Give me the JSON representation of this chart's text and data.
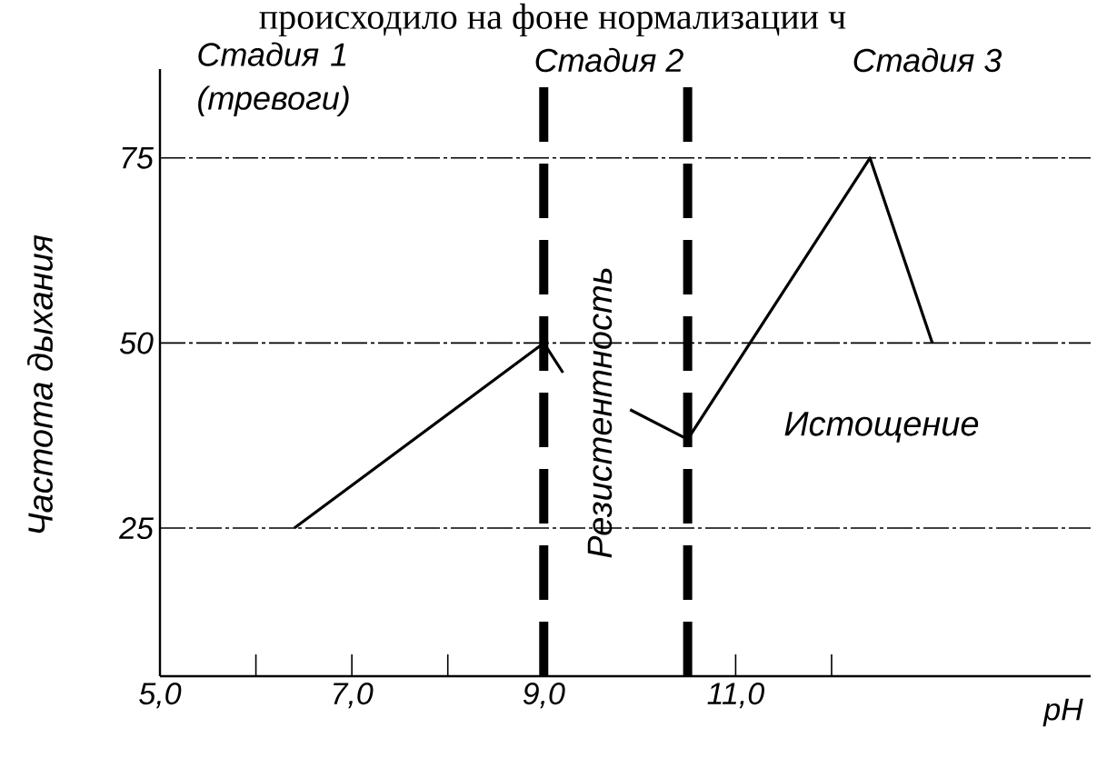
{
  "chart_data": {
    "type": "line",
    "ylabel": "Частота дыхания",
    "xlabel": "pH",
    "annotations": [
      "происходило на фоне нормализации ч",
      "Стадия 1 (тревоги)",
      "Стадия 2",
      "Стадия 3",
      "Резистентность",
      "Истощение"
    ],
    "series": [
      {
        "color": "#000000",
        "x": [
          6.4,
          9.0,
          9.2,
          9.55,
          9.9,
          10.5,
          12.4,
          13.05
        ],
        "values": [
          25,
          50,
          46,
          null,
          41,
          37,
          75,
          50
        ]
      }
    ],
    "xlim": [
      5,
      14.7
    ],
    "ylim": [
      5,
      87
    ],
    "xticks": [
      {
        "value": 5,
        "label": "5,0"
      },
      {
        "value": 6,
        "label": null
      },
      {
        "value": 7,
        "label": "7,0"
      },
      {
        "value": 8,
        "label": null
      },
      {
        "value": 9,
        "label": "9,0"
      },
      {
        "value": 11,
        "label": "11,0"
      },
      {
        "value": 12,
        "label": null
      }
    ],
    "yticks": [
      25,
      50,
      75
    ],
    "grid": "y",
    "marker": "none",
    "line_style": "solid",
    "ref_lines": [
      {
        "axis": "x",
        "value": 9.0,
        "line_style": "dashed",
        "color": "#000000"
      },
      {
        "axis": "x",
        "value": 10.5,
        "line_style": "dashed",
        "color": "#000000"
      }
    ]
  }
}
